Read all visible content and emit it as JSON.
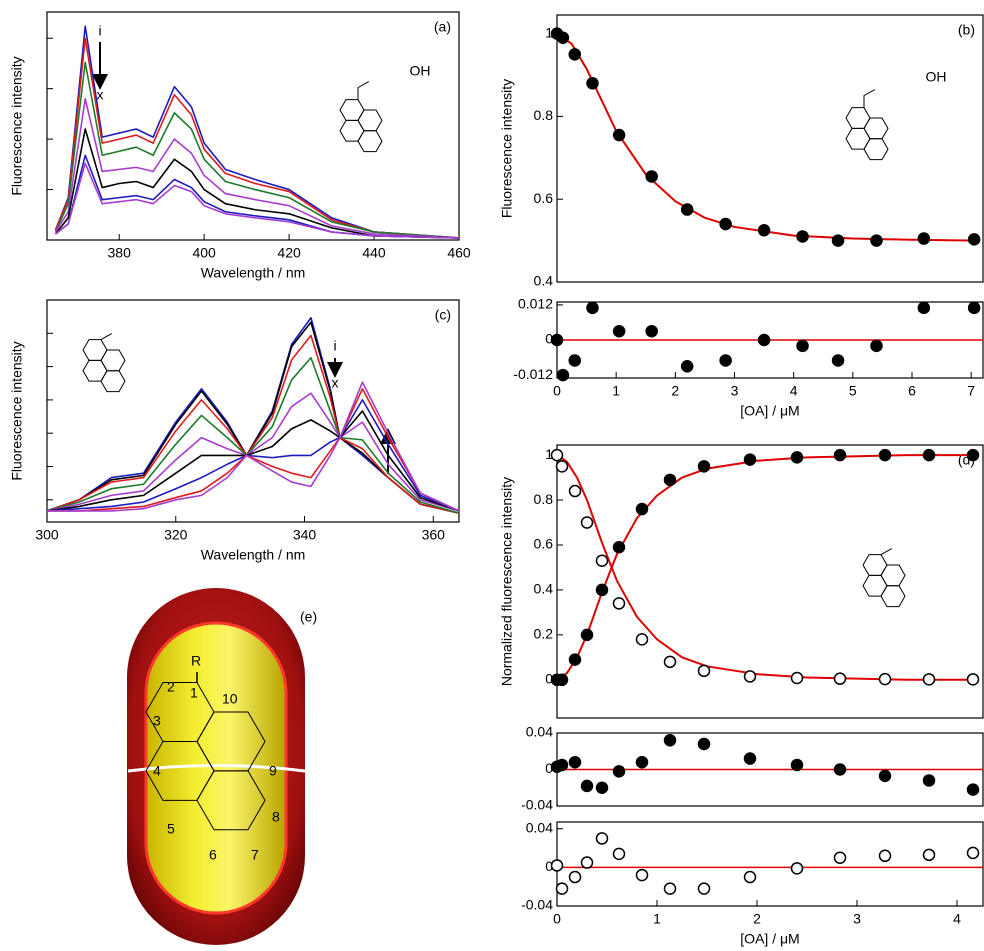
{
  "chart_data": [
    {
      "type": "line",
      "label": "(a)",
      "xlabel": "Wavelength / nm",
      "ylabel": "Fluorescence intensity",
      "xlim": [
        363,
        460
      ],
      "xticks": [
        380,
        400,
        420,
        440,
        460
      ],
      "ylim": [
        0,
        1.13
      ],
      "yticks": [
        0.25,
        0.5,
        0.75,
        1
      ],
      "ytick_labels": false,
      "annotations": [
        "i",
        "x",
        "OH"
      ],
      "x": [
        365,
        368,
        372,
        376,
        380,
        384,
        388,
        393,
        397,
        400,
        405,
        412,
        420,
        430,
        440,
        460
      ],
      "series": [
        {
          "color": "#1c1cc0",
          "values": [
            0.05,
            0.21,
            1.06,
            0.51,
            0.53,
            0.55,
            0.51,
            0.76,
            0.66,
            0.48,
            0.35,
            0.3,
            0.25,
            0.11,
            0.04,
            0.01
          ]
        },
        {
          "color": "#e01b1b",
          "values": [
            0.05,
            0.2,
            1.0,
            0.48,
            0.5,
            0.52,
            0.48,
            0.72,
            0.62,
            0.45,
            0.33,
            0.28,
            0.24,
            0.1,
            0.04,
            0.01
          ]
        },
        {
          "color": "#1f7a2a",
          "values": [
            0.04,
            0.18,
            0.88,
            0.42,
            0.44,
            0.46,
            0.42,
            0.63,
            0.55,
            0.4,
            0.29,
            0.25,
            0.21,
            0.09,
            0.04,
            0.01
          ]
        },
        {
          "color": "#a83cd0",
          "values": [
            0.04,
            0.14,
            0.7,
            0.34,
            0.35,
            0.36,
            0.34,
            0.5,
            0.43,
            0.32,
            0.23,
            0.2,
            0.17,
            0.07,
            0.03,
            0.01
          ]
        },
        {
          "color": "#000000",
          "values": [
            0.03,
            0.11,
            0.55,
            0.26,
            0.28,
            0.29,
            0.26,
            0.4,
            0.34,
            0.25,
            0.18,
            0.15,
            0.13,
            0.06,
            0.02,
            0.01
          ]
        },
        {
          "color": "#1c1cc0",
          "values": [
            0.03,
            0.08,
            0.42,
            0.2,
            0.21,
            0.22,
            0.2,
            0.3,
            0.26,
            0.19,
            0.14,
            0.12,
            0.1,
            0.04,
            0.02,
            0.01
          ]
        },
        {
          "color": "#a83cd0",
          "values": [
            0.03,
            0.08,
            0.38,
            0.18,
            0.19,
            0.2,
            0.18,
            0.27,
            0.24,
            0.17,
            0.13,
            0.11,
            0.09,
            0.04,
            0.02,
            0.01
          ]
        }
      ]
    },
    {
      "type": "scatter",
      "label": "(b)",
      "ylabel": "Fluorescence intensity",
      "annotations": [
        "OH"
      ],
      "xlim": [
        0,
        7.2
      ],
      "ylim": [
        0.4,
        1.045
      ],
      "yticks": [
        0.4,
        0.6,
        0.8,
        1
      ],
      "series": [
        {
          "color": "#e00000",
          "marker": "none",
          "x": [
            0,
            0.25,
            0.5,
            0.75,
            1,
            1.5,
            2,
            2.5,
            3,
            4,
            5,
            6,
            7.1
          ],
          "values": [
            1.0,
            0.975,
            0.915,
            0.84,
            0.765,
            0.66,
            0.595,
            0.555,
            0.533,
            0.512,
            0.505,
            0.502,
            0.5
          ]
        },
        {
          "color": "#000000",
          "marker": "filled",
          "x": [
            0,
            0.1,
            0.3,
            0.6,
            1.05,
            1.6,
            2.2,
            2.85,
            3.5,
            4.15,
            4.75,
            5.4,
            6.2,
            7.05
          ],
          "values": [
            1.0,
            0.99,
            0.95,
            0.88,
            0.755,
            0.655,
            0.575,
            0.54,
            0.525,
            0.51,
            0.5,
            0.5,
            0.505,
            0.503
          ]
        }
      ]
    },
    {
      "type": "scatter",
      "xlabel": "[OA] / μM",
      "xlim": [
        0,
        7.2
      ],
      "xticks": [
        0,
        1,
        2,
        3,
        4,
        5,
        6,
        7
      ],
      "ylim": [
        -0.013,
        0.013
      ],
      "yticks": [
        -0.012,
        0,
        0.012
      ],
      "reference_line": 0,
      "reference_color": "#e00000",
      "series": [
        {
          "color": "#000000",
          "marker": "filled",
          "x": [
            0,
            0.1,
            0.3,
            0.6,
            1.05,
            1.6,
            2.2,
            2.85,
            3.5,
            4.15,
            4.75,
            5.4,
            6.2,
            7.05
          ],
          "values": [
            0.0,
            -0.012,
            -0.007,
            0.011,
            0.003,
            0.003,
            -0.009,
            -0.007,
            0,
            -0.002,
            -0.007,
            -0.002,
            0.011,
            0.011
          ]
        }
      ]
    },
    {
      "type": "line",
      "label": "(c)",
      "xlabel": "Wavelength / nm",
      "ylabel": "Fluorescence intensity",
      "xlim": [
        300,
        364
      ],
      "xticks": [
        300,
        320,
        340,
        360
      ],
      "ylim": [
        0,
        1.0
      ],
      "yticks": [
        0.1,
        0.25,
        0.4,
        0.55,
        0.7,
        0.85
      ],
      "ytick_labels": false,
      "annotations": [
        "i",
        "x"
      ],
      "x": [
        300,
        305,
        310,
        315,
        320,
        324,
        328,
        331,
        335,
        338,
        341,
        344,
        345.5,
        349,
        353,
        358,
        364
      ],
      "series": [
        {
          "color": "#1c1cc0",
          "values": [
            0.05,
            0.1,
            0.2,
            0.22,
            0.45,
            0.6,
            0.45,
            0.3,
            0.5,
            0.8,
            0.92,
            0.6,
            0.38,
            0.3,
            0.2,
            0.08,
            0.04
          ]
        },
        {
          "color": "#000000",
          "values": [
            0.05,
            0.1,
            0.19,
            0.21,
            0.44,
            0.59,
            0.44,
            0.3,
            0.49,
            0.79,
            0.9,
            0.59,
            0.38,
            0.31,
            0.2,
            0.08,
            0.04
          ]
        },
        {
          "color": "#e01b1b",
          "values": [
            0.05,
            0.1,
            0.18,
            0.2,
            0.41,
            0.55,
            0.42,
            0.3,
            0.47,
            0.73,
            0.84,
            0.56,
            0.38,
            0.33,
            0.2,
            0.08,
            0.04
          ]
        },
        {
          "color": "#1f7a2a",
          "values": [
            0.05,
            0.09,
            0.15,
            0.17,
            0.35,
            0.48,
            0.38,
            0.3,
            0.43,
            0.64,
            0.74,
            0.5,
            0.38,
            0.37,
            0.22,
            0.09,
            0.04
          ]
        },
        {
          "color": "#a83cd0",
          "values": [
            0.05,
            0.08,
            0.12,
            0.14,
            0.28,
            0.38,
            0.33,
            0.3,
            0.38,
            0.52,
            0.58,
            0.45,
            0.38,
            0.45,
            0.26,
            0.1,
            0.05
          ]
        },
        {
          "color": "#000000",
          "values": [
            0.05,
            0.07,
            0.1,
            0.12,
            0.22,
            0.3,
            0.3,
            0.3,
            0.34,
            0.42,
            0.46,
            0.41,
            0.38,
            0.5,
            0.3,
            0.11,
            0.05
          ]
        },
        {
          "color": "#1c1cc0",
          "values": [
            0.05,
            0.06,
            0.07,
            0.09,
            0.15,
            0.2,
            0.26,
            0.3,
            0.29,
            0.3,
            0.3,
            0.36,
            0.38,
            0.55,
            0.35,
            0.12,
            0.05
          ]
        },
        {
          "color": "#e01b1b",
          "values": [
            0.05,
            0.05,
            0.06,
            0.07,
            0.11,
            0.14,
            0.22,
            0.3,
            0.25,
            0.22,
            0.2,
            0.32,
            0.38,
            0.6,
            0.38,
            0.13,
            0.05
          ]
        },
        {
          "color": "#a83cd0",
          "values": [
            0.05,
            0.05,
            0.05,
            0.06,
            0.1,
            0.12,
            0.2,
            0.3,
            0.23,
            0.18,
            0.16,
            0.3,
            0.38,
            0.63,
            0.4,
            0.13,
            0.05
          ]
        }
      ]
    },
    {
      "type": "scatter",
      "label": "(d)",
      "ylabel": "Normalized fluorescence intensity",
      "xlim": [
        0,
        4.26
      ],
      "ylim": [
        -0.17,
        1.045
      ],
      "yticks": [
        0,
        0.2,
        0.4,
        0.6,
        0.8,
        1
      ],
      "series": [
        {
          "color": "#e00000",
          "marker": "none",
          "x": [
            0,
            0.1,
            0.2,
            0.3,
            0.45,
            0.6,
            0.8,
            1,
            1.25,
            1.5,
            2,
            2.5,
            3,
            3.5,
            4.2
          ],
          "values": [
            0,
            0.03,
            0.1,
            0.2,
            0.39,
            0.56,
            0.72,
            0.82,
            0.9,
            0.94,
            0.975,
            0.99,
            0.995,
            1.0,
            1.0
          ]
        },
        {
          "color": "#e00000",
          "marker": "none",
          "x": [
            0,
            0.1,
            0.2,
            0.3,
            0.45,
            0.6,
            0.8,
            1,
            1.25,
            1.5,
            2,
            2.5,
            3,
            3.5,
            4.2
          ],
          "values": [
            1,
            0.97,
            0.9,
            0.8,
            0.61,
            0.44,
            0.28,
            0.18,
            0.1,
            0.06,
            0.025,
            0.01,
            0.005,
            0,
            0
          ]
        },
        {
          "color": "#000000",
          "marker": "filled",
          "x": [
            0,
            0.05,
            0.18,
            0.3,
            0.45,
            0.62,
            0.85,
            1.13,
            1.47,
            1.93,
            2.4,
            2.83,
            3.28,
            3.72,
            4.16
          ],
          "values": [
            0,
            0,
            0.09,
            0.2,
            0.4,
            0.59,
            0.76,
            0.89,
            0.95,
            0.98,
            0.99,
            1.0,
            1.0,
            1.0,
            1.0
          ]
        },
        {
          "color": "#000000",
          "marker": "open",
          "x": [
            0,
            0.05,
            0.18,
            0.3,
            0.45,
            0.62,
            0.85,
            1.13,
            1.47,
            1.93,
            2.4,
            2.83,
            3.28,
            3.72,
            4.16
          ],
          "values": [
            1,
            0.95,
            0.84,
            0.7,
            0.53,
            0.34,
            0.18,
            0.08,
            0.04,
            0.015,
            0.008,
            0.005,
            0.003,
            0.002,
            0.002
          ]
        }
      ]
    },
    {
      "type": "scatter",
      "xlim": [
        0,
        4.26
      ],
      "ylim": [
        -0.04,
        0.04
      ],
      "yticks": [
        -0.04,
        0,
        0.04
      ],
      "reference_line": 0,
      "reference_color": "#e00000",
      "series": [
        {
          "color": "#000000",
          "marker": "filled",
          "x": [
            0,
            0.05,
            0.18,
            0.3,
            0.45,
            0.62,
            0.85,
            1.13,
            1.47,
            1.93,
            2.4,
            2.83,
            3.28,
            3.72,
            4.16
          ],
          "values": [
            0.003,
            0.005,
            0.008,
            -0.018,
            -0.02,
            -0.002,
            0.008,
            0.032,
            0.028,
            0.012,
            0.005,
            0,
            -0.007,
            -0.012,
            -0.022
          ]
        }
      ]
    },
    {
      "type": "scatter",
      "xlabel": "[OA] / μM",
      "xlim": [
        0,
        4.26
      ],
      "xticks": [
        0,
        1,
        2,
        3,
        4
      ],
      "ylim": [
        -0.04,
        0.047
      ],
      "yticks": [
        -0.04,
        0,
        0.04
      ],
      "reference_line": 0,
      "reference_color": "#e00000",
      "series": [
        {
          "color": "#000000",
          "marker": "open",
          "x": [
            0,
            0.05,
            0.18,
            0.3,
            0.45,
            0.62,
            0.85,
            1.13,
            1.47,
            1.93,
            2.4,
            2.83,
            3.28,
            3.72,
            4.16
          ],
          "values": [
            0.002,
            -0.022,
            -0.01,
            0.005,
            0.03,
            0.014,
            -0.008,
            -0.022,
            -0.022,
            -0.01,
            -0.001,
            0.01,
            0.012,
            0.013,
            0.015
          ]
        }
      ]
    }
  ],
  "diagram": {
    "label": "(e)",
    "substituent": "R",
    "positions": [
      "1",
      "2",
      "3",
      "4",
      "5",
      "6",
      "7",
      "8",
      "9",
      "10"
    ]
  }
}
